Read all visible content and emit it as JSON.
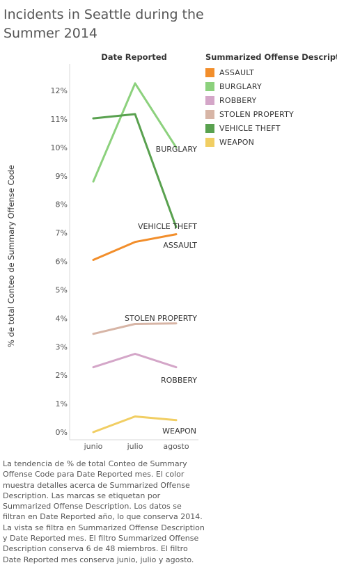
{
  "title": "Incidents in Seattle during the Summer 2014",
  "column_header": "Date Reported",
  "legend": {
    "title": "Summarized Offense Description",
    "items": [
      {
        "label": "ASSAULT",
        "color": "#F28E2B"
      },
      {
        "label": "BURGLARY",
        "color": "#8CD17D"
      },
      {
        "label": "ROBBERY",
        "color": "#D4A6C8"
      },
      {
        "label": "STOLEN PROPERTY",
        "color": "#D7B5A6"
      },
      {
        "label": "VEHICLE THEFT",
        "color": "#59A14F"
      },
      {
        "label": "WEAPON",
        "color": "#F1CE63"
      }
    ]
  },
  "caption": "La tendencia de % de total Conteo de Summary Offense Code para Date Reported mes.  El color muestra detalles acerca de Summarized Offense Description.  Las marcas se etiquetan por Summarized Offense Description. Los datos se filtran en Date Reported año, lo que conserva 2014. La vista se filtra en Summarized Offense Description y Date Reported mes. El filtro Summarized Offense Description conserva 6 de 48 miembros. El filtro Date Reported mes conserva junio, julio y agosto.",
  "chart_data": {
    "type": "line",
    "x": [
      "junio",
      "julio",
      "agosto"
    ],
    "ylabel": "% de total Conteo de Summary Offense Code",
    "ylim": [
      0,
      12
    ],
    "yticks": [
      "0%",
      "1%",
      "2%",
      "3%",
      "4%",
      "5%",
      "6%",
      "7%",
      "8%",
      "9%",
      "10%",
      "11%",
      "12%"
    ],
    "grid": false,
    "legend_position": "right",
    "series": [
      {
        "name": "ASSAULT",
        "color": "#F28E2B",
        "values": [
          6.05,
          6.68,
          6.95
        ]
      },
      {
        "name": "BURGLARY",
        "color": "#8CD17D",
        "values": [
          8.8,
          12.25,
          10.0
        ]
      },
      {
        "name": "ROBBERY",
        "color": "#D4A6C8",
        "values": [
          2.28,
          2.75,
          2.28
        ]
      },
      {
        "name": "STOLEN PROPERTY",
        "color": "#D7B5A6",
        "values": [
          3.45,
          3.8,
          3.82
        ]
      },
      {
        "name": "VEHICLE THEFT",
        "color": "#59A14F",
        "values": [
          11.02,
          11.17,
          7.2
        ]
      },
      {
        "name": "WEAPON",
        "color": "#F1CE63",
        "values": [
          0.0,
          0.55,
          0.42
        ]
      }
    ]
  }
}
